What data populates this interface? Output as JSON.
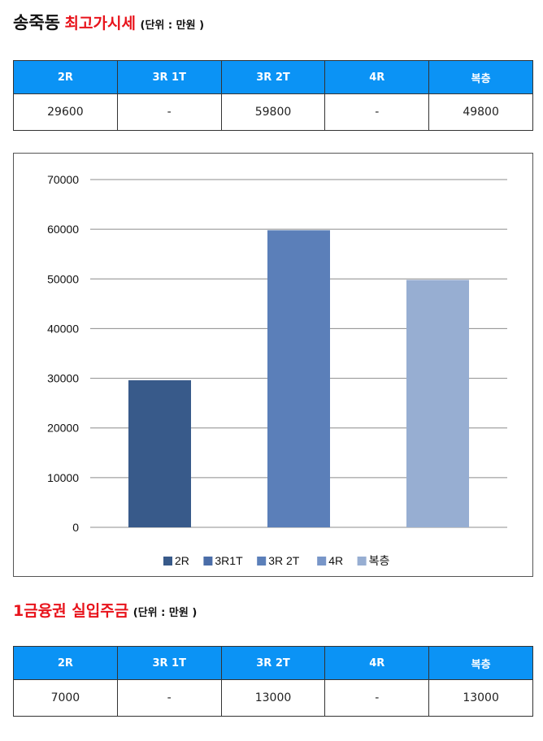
{
  "section1": {
    "title_place": "송죽동",
    "title_main": "최고가시세",
    "title_unit": "(단위 : 만원 )",
    "columns": [
      "2R",
      "3R 1T",
      "3R 2T",
      "4R",
      "복층"
    ],
    "values": [
      "29600",
      "-",
      "59800",
      "-",
      "49800"
    ]
  },
  "section2": {
    "title_main": "1금융권 실입주금",
    "title_unit": "(단위 : 만원 )",
    "columns": [
      "2R",
      "3R 1T",
      "3R 2T",
      "4R",
      "복층"
    ],
    "values": [
      "7000",
      "-",
      "13000",
      "-",
      "13000"
    ]
  },
  "chart_data": {
    "type": "bar",
    "categories": [
      "2R",
      "3R1T",
      "3R 2T",
      "4R",
      "복층"
    ],
    "values": [
      29600,
      null,
      59800,
      null,
      49800
    ],
    "ylim": [
      0,
      70000
    ],
    "yticks": [
      0,
      10000,
      20000,
      30000,
      40000,
      50000,
      60000,
      70000
    ],
    "grid": true,
    "legend_position": "bottom",
    "colors": [
      "#385a8a",
      "#4a6da8",
      "#5b7fb9",
      "#7896c8",
      "#97aed2"
    ],
    "legend": [
      {
        "label": "2R",
        "color": "#385a8a"
      },
      {
        "label": "3R1T",
        "color": "#4a6da8"
      },
      {
        "label": "3R 2T",
        "color": "#5b7fb9"
      },
      {
        "label": "4R",
        "color": "#7896c8"
      },
      {
        "label": "복층",
        "color": "#97aed2"
      }
    ]
  }
}
